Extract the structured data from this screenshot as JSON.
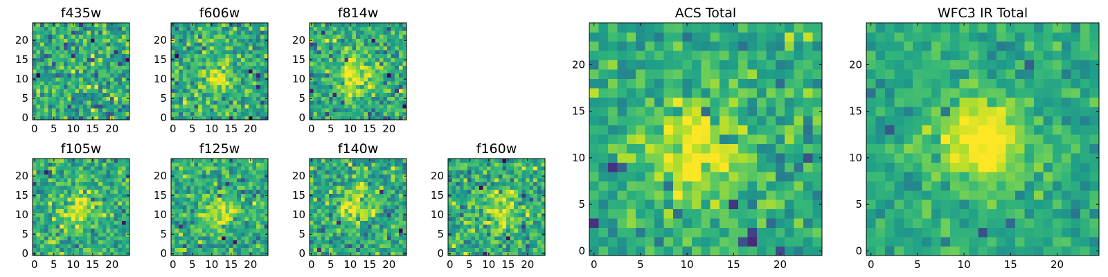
{
  "figure": {
    "background": "#ffffff",
    "colormap": "viridis"
  },
  "chart_data": [
    {
      "type": "heatmap",
      "title": "f435w",
      "grid_size": 25,
      "xticks": [
        0,
        5,
        10,
        15,
        20
      ],
      "yticks": [
        0,
        5,
        10,
        15,
        20
      ],
      "source_center": null,
      "noise": 0.85,
      "source_strength": 0.0
    },
    {
      "type": "heatmap",
      "title": "f606w",
      "grid_size": 25,
      "xticks": [
        0,
        5,
        10,
        15,
        20
      ],
      "yticks": [
        0,
        5,
        10,
        15,
        20
      ],
      "source_center": [
        11,
        11
      ],
      "noise": 0.8,
      "source_strength": 0.45
    },
    {
      "type": "heatmap",
      "title": "f814w",
      "grid_size": 25,
      "xticks": [
        0,
        5,
        10,
        15,
        20
      ],
      "yticks": [
        0,
        5,
        10,
        15,
        20
      ],
      "source_center": [
        11,
        11
      ],
      "noise": 0.8,
      "source_strength": 0.6
    },
    {
      "type": "heatmap",
      "title": "f105w",
      "grid_size": 25,
      "xticks": [
        0,
        5,
        10,
        15,
        20
      ],
      "yticks": [
        0,
        5,
        10,
        15,
        20
      ],
      "source_center": [
        12,
        12
      ],
      "noise": 0.7,
      "source_strength": 0.55
    },
    {
      "type": "heatmap",
      "title": "f125w",
      "grid_size": 25,
      "xticks": [
        0,
        5,
        10,
        15,
        20
      ],
      "yticks": [
        0,
        5,
        10,
        15,
        20
      ],
      "source_center": [
        12,
        11
      ],
      "noise": 0.75,
      "source_strength": 0.5
    },
    {
      "type": "heatmap",
      "title": "f140w",
      "grid_size": 25,
      "xticks": [
        0,
        5,
        10,
        15,
        20
      ],
      "yticks": [
        0,
        5,
        10,
        15,
        20
      ],
      "source_center": [
        11,
        12
      ],
      "noise": 0.75,
      "source_strength": 0.5
    },
    {
      "type": "heatmap",
      "title": "f160w",
      "grid_size": 25,
      "xticks": [
        0,
        5,
        10,
        15,
        20
      ],
      "yticks": [
        0,
        5,
        10,
        15,
        20
      ],
      "source_center": [
        13,
        11
      ],
      "noise": 0.75,
      "source_strength": 0.6
    },
    {
      "type": "heatmap",
      "title": "ACS Total",
      "grid_size": 25,
      "xticks": [
        0,
        5,
        10,
        15,
        20
      ],
      "yticks": [
        0,
        5,
        10,
        15,
        20
      ],
      "source_center": [
        11,
        11
      ],
      "noise": 0.65,
      "source_strength": 0.75
    },
    {
      "type": "heatmap",
      "title": "WFC3 IR Total",
      "grid_size": 25,
      "xticks": [
        0,
        5,
        10,
        15,
        20
      ],
      "yticks": [
        0,
        5,
        10,
        15,
        20
      ],
      "source_center": [
        12,
        12
      ],
      "noise": 0.45,
      "source_strength": 0.9
    }
  ]
}
